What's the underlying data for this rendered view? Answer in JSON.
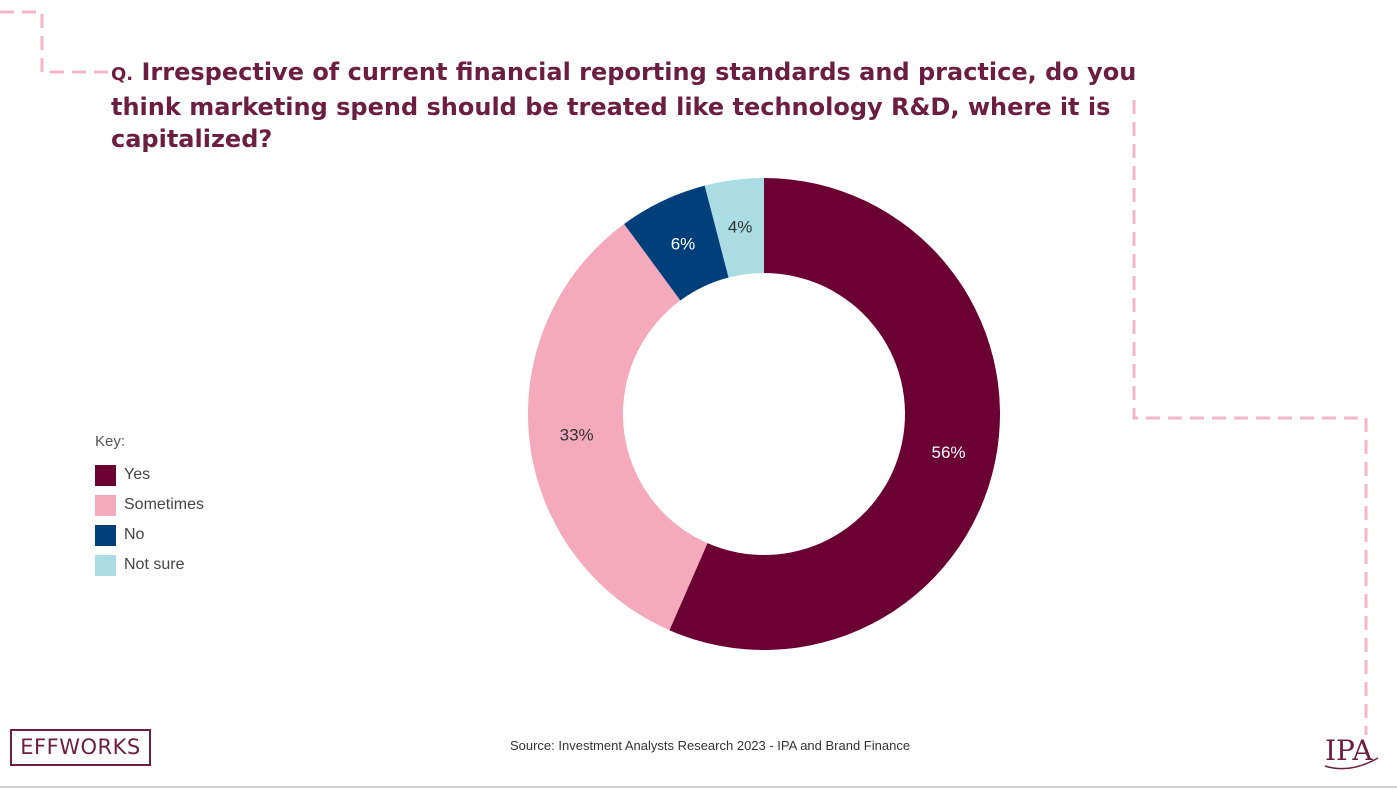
{
  "question": {
    "prefix": "Q.",
    "text": " Irrespective of current financial reporting standards and practice, do you think marketing spend should be treated like technology R&D, where it is capitalized?"
  },
  "chart_data": {
    "type": "pie",
    "donut": true,
    "title": "",
    "categories": [
      "Yes",
      "Sometimes",
      "No",
      "Not sure"
    ],
    "values": [
      56,
      33,
      6,
      4
    ],
    "value_labels": [
      "56%",
      "33%",
      "6%",
      "4%"
    ],
    "colors": [
      "#6b0033",
      "#f4a9bc",
      "#003f7a",
      "#a9dde3"
    ],
    "label_colors": [
      "#ffffff",
      "#333333",
      "#ffffff",
      "#333333"
    ],
    "legend": {
      "title": "Key:",
      "position": "left"
    }
  },
  "source": "Source: Investment Analysts Research 2023 - IPA and Brand Finance",
  "logos": {
    "left": "EFFWORKS",
    "right": "IPA"
  },
  "colors": {
    "title": "#6b1e3f",
    "decoration": "#f4b7c8"
  }
}
